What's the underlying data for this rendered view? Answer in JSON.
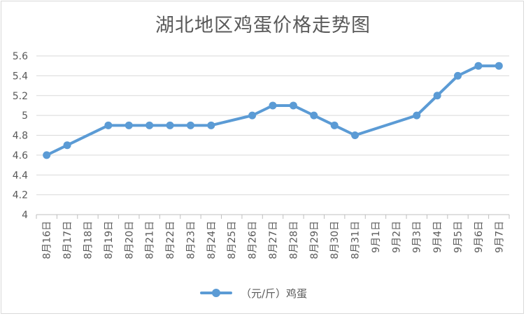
{
  "chart_data": {
    "type": "line",
    "title": "湖北地区鸡蛋价格走势图",
    "xlabel": "",
    "ylabel": "",
    "ylim": [
      4,
      5.6
    ],
    "yticks": [
      "4",
      "4.2",
      "4.4",
      "4.6",
      "4.8",
      "5",
      "5.2",
      "5.4",
      "5.6"
    ],
    "grid": true,
    "legend_position": "bottom",
    "categories": [
      "8月16日",
      "8月17日",
      "8月18日",
      "8月19日",
      "8月20日",
      "8月21日",
      "8月22日",
      "8月23日",
      "8月24日",
      "8月25日",
      "8月26日",
      "8月27日",
      "8月28日",
      "8月29日",
      "8月30日",
      "8月31日",
      "9月1日",
      "9月2日",
      "9月3日",
      "9月4日",
      "9月5日",
      "9月6日",
      "9月7日"
    ],
    "series": [
      {
        "name": "（元/斤）鸡蛋",
        "color": "#5b9bd5",
        "values": [
          4.6,
          4.7,
          null,
          4.9,
          4.9,
          4.9,
          4.9,
          4.9,
          4.9,
          null,
          5.0,
          5.1,
          5.1,
          5.0,
          4.9,
          4.8,
          null,
          null,
          5.0,
          5.2,
          5.4,
          5.5,
          5.5
        ]
      }
    ]
  }
}
